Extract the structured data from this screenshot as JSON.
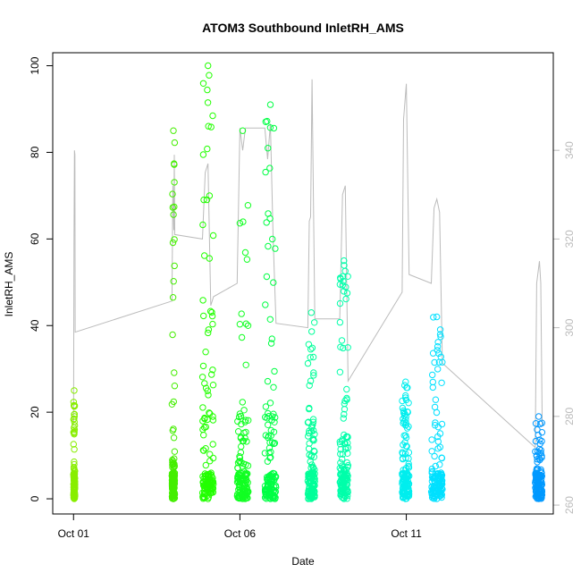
{
  "chart_data": {
    "type": "scatter",
    "title": "ATOM3 Southbound InletRH_AMS",
    "xlabel": "Date",
    "ylabel": "InletRH_AMS",
    "xlim": [
      "2016-09-30T09:00",
      "2016-10-15T10:00"
    ],
    "ylim": [
      -3.5,
      103
    ],
    "y2lim": [
      258,
      362
    ],
    "x_ticks": [
      {
        "date": "2016-10-01",
        "label": "Oct 01"
      },
      {
        "date": "2016-10-06",
        "label": "Oct 06"
      },
      {
        "date": "2016-10-11",
        "label": "Oct 11"
      }
    ],
    "y_ticks": [
      0,
      20,
      40,
      60,
      80,
      100
    ],
    "y2_ticks": [
      260,
      280,
      300,
      320,
      340
    ],
    "grid": false,
    "legend": "none",
    "point_color_scale": "hue by date: yellow-green → green → cyan → blue",
    "colors": {
      "early": "#88ee00",
      "mid_early": "#33ff00",
      "mid": "#00ff66",
      "mid_late": "#00ffbb",
      "late": "#00eeff",
      "last": "#0099ff",
      "secondary_line": "#bbbbbb"
    },
    "series": [
      {
        "name": "InletRH_AMS",
        "axis": "left",
        "marker": "open circle",
        "clusters": [
          {
            "start": "2016-10-01T00:00",
            "end": "2016-10-01T01:00",
            "min": 0,
            "max": 25,
            "dense_max": 8,
            "color": "#88ee00"
          },
          {
            "start": "2016-10-03T23:00",
            "end": "2016-10-04T01:00",
            "min": 0,
            "max": 85,
            "dense_max": 10,
            "color": "#44ee00"
          },
          {
            "start": "2016-10-04T21:00",
            "end": "2016-10-05T05:00",
            "min": 0,
            "max": 100,
            "dense_max": 45,
            "color": "#22ff00"
          },
          {
            "start": "2016-10-05T22:00",
            "end": "2016-10-06T06:00",
            "min": 0,
            "max": 85,
            "dense_max": 20,
            "color": "#11ff22"
          },
          {
            "start": "2016-10-06T18:00",
            "end": "2016-10-07T02:00",
            "min": 0,
            "max": 91,
            "dense_max": 20,
            "color": "#00ff44"
          },
          {
            "start": "2016-10-08T01:00",
            "end": "2016-10-08T06:00",
            "min": 0,
            "max": 43,
            "dense_max": 18,
            "color": "#00ff99"
          },
          {
            "start": "2016-10-09T00:00",
            "end": "2016-10-09T06:00",
            "min": 0,
            "max": 55,
            "dense_max": 15,
            "color": "#00ffaa"
          },
          {
            "start": "2016-10-10T21:00",
            "end": "2016-10-11T02:00",
            "min": 0,
            "max": 27,
            "dense_max": 18,
            "color": "#00eeee"
          },
          {
            "start": "2016-10-11T18:00",
            "end": "2016-10-12T02:00",
            "min": 0,
            "max": 42,
            "dense_max": 20,
            "color": "#00e0ff"
          },
          {
            "start": "2016-10-14T21:00",
            "end": "2016-10-15T02:00",
            "min": 0,
            "max": 19,
            "dense_max": 10,
            "color": "#0099ff"
          }
        ]
      },
      {
        "axis": "right",
        "type": "line",
        "color": "#bbbbbb",
        "points": [
          [
            "2016-10-01T00:00",
            278
          ],
          [
            "2016-10-01T00:20",
            320
          ],
          [
            "2016-10-01T00:40",
            340
          ],
          [
            "2016-10-01T01:00",
            339
          ],
          [
            "2016-10-01T01:10",
            299
          ],
          [
            "2016-10-03T23:00",
            306
          ],
          [
            "2016-10-03T23:40",
            332
          ],
          [
            "2016-10-04T00:20",
            322
          ],
          [
            "2016-10-04T00:40",
            339
          ],
          [
            "2016-10-04T01:00",
            321
          ],
          [
            "2016-10-04T21:00",
            320
          ],
          [
            "2016-10-04T23:00",
            335
          ],
          [
            "2016-10-05T01:00",
            337
          ],
          [
            "2016-10-05T03:00",
            305
          ],
          [
            "2016-10-05T05:00",
            307
          ],
          [
            "2016-10-05T22:00",
            310
          ],
          [
            "2016-10-06T00:00",
            345
          ],
          [
            "2016-10-06T02:00",
            340
          ],
          [
            "2016-10-06T04:00",
            345
          ],
          [
            "2016-10-06T06:00",
            345
          ],
          [
            "2016-10-06T18:00",
            345
          ],
          [
            "2016-10-06T20:00",
            338
          ],
          [
            "2016-10-06T22:00",
            346
          ],
          [
            "2016-10-07T00:00",
            320
          ],
          [
            "2016-10-07T02:00",
            301
          ],
          [
            "2016-10-08T01:00",
            300
          ],
          [
            "2016-10-08T02:00",
            324
          ],
          [
            "2016-10-08T03:00",
            325
          ],
          [
            "2016-10-08T04:00",
            356
          ],
          [
            "2016-10-08T06:00",
            302
          ],
          [
            "2016-10-09T00:00",
            302
          ],
          [
            "2016-10-09T02:00",
            330
          ],
          [
            "2016-10-09T04:00",
            332
          ],
          [
            "2016-10-09T06:00",
            288
          ],
          [
            "2016-10-10T21:00",
            308
          ],
          [
            "2016-10-10T22:00",
            347
          ],
          [
            "2016-10-11T00:00",
            355
          ],
          [
            "2016-10-11T02:00",
            312
          ],
          [
            "2016-10-11T18:00",
            310
          ],
          [
            "2016-10-11T20:00",
            327
          ],
          [
            "2016-10-11T22:00",
            329
          ],
          [
            "2016-10-12T00:00",
            326
          ],
          [
            "2016-10-12T02:00",
            292
          ],
          [
            "2016-10-14T21:00",
            273
          ],
          [
            "2016-10-14T22:00",
            310
          ],
          [
            "2016-10-15T00:00",
            315
          ],
          [
            "2016-10-15T01:00",
            310
          ],
          [
            "2016-10-15T02:00",
            278
          ]
        ]
      }
    ]
  }
}
